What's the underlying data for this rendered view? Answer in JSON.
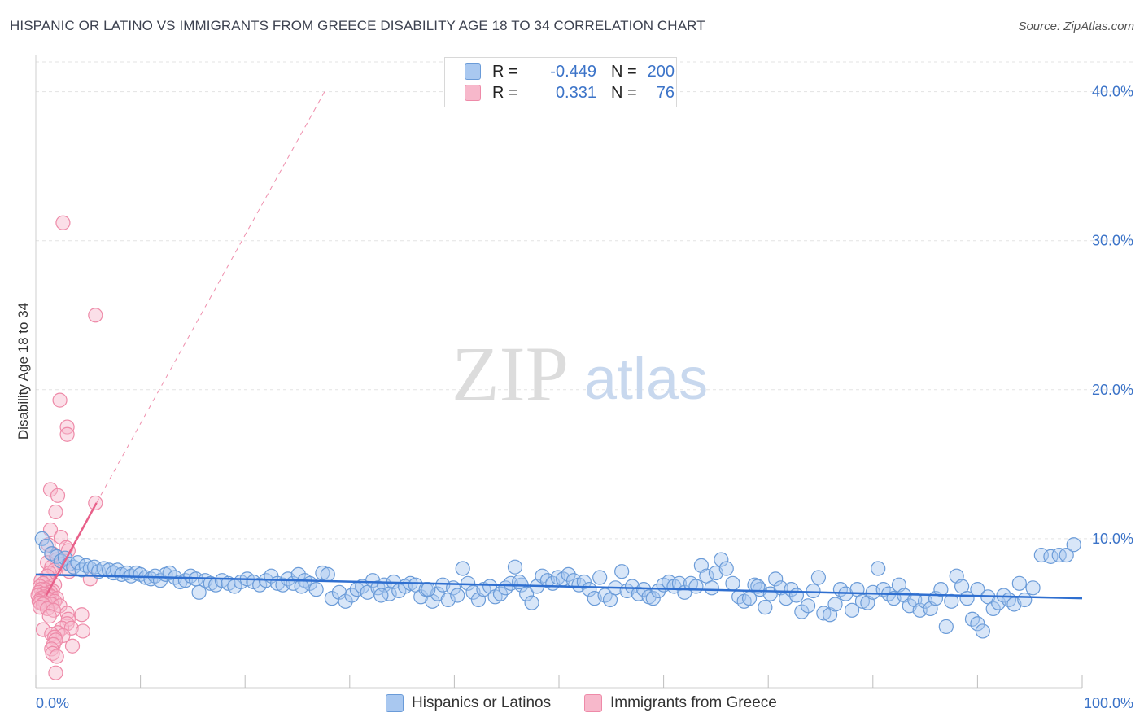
{
  "header": {
    "title": "HISPANIC OR LATINO VS IMMIGRANTS FROM GREECE DISABILITY AGE 18 TO 34 CORRELATION CHART",
    "source": "Source: ZipAtlas.com"
  },
  "watermark": {
    "zip": "ZIP",
    "atlas": "atlas"
  },
  "legend": {
    "series1": {
      "r_label": "R =",
      "r_value": "-0.449",
      "n_label": "N =",
      "n_value": "200"
    },
    "series2": {
      "r_label": "R =",
      "r_value": "0.331",
      "n_label": "N =",
      "n_value": "76"
    }
  },
  "bottom_legend": {
    "series1": "Hispanics or Latinos",
    "series2": "Immigrants from Greece"
  },
  "colors": {
    "blue_fill": "#a9c8f0",
    "blue_stroke": "#6a9bd8",
    "blue_line": "#2f6fd0",
    "pink_fill": "#f7b8cb",
    "pink_stroke": "#ee8aa8",
    "pink_line": "#e8608a",
    "tick_text": "#3b73c8",
    "grid": "#e3e3e3"
  },
  "chart_data": {
    "type": "scatter",
    "title": "HISPANIC OR LATINO VS IMMIGRANTS FROM GREECE DISABILITY AGE 18 TO 34 CORRELATION CHART",
    "xlabel": "",
    "ylabel": "Disability Age 18 to 34",
    "xlim": [
      0,
      100
    ],
    "ylim": [
      0,
      42
    ],
    "x_tick_labels": [
      "0.0%",
      "100.0%"
    ],
    "y_ticks": [
      10,
      20,
      30,
      40
    ],
    "y_tick_labels": [
      "10.0%",
      "20.0%",
      "30.0%",
      "40.0%"
    ],
    "grid": true,
    "series": [
      {
        "name": "Hispanics or Latinos",
        "r": -0.449,
        "n": 200,
        "trend": {
          "x0": 0,
          "y0": 7.6,
          "x1": 100,
          "y1": 6.0
        },
        "points": [
          [
            0.6,
            10.0
          ],
          [
            1,
            9.5
          ],
          [
            1.5,
            9.0
          ],
          [
            2,
            8.8
          ],
          [
            2.4,
            8.5
          ],
          [
            2.8,
            8.7
          ],
          [
            3.2,
            8.3
          ],
          [
            3.6,
            8.1
          ],
          [
            4,
            8.4
          ],
          [
            4.4,
            7.9
          ],
          [
            4.8,
            8.2
          ],
          [
            5.2,
            8.0
          ],
          [
            5.6,
            8.1
          ],
          [
            6,
            7.8
          ],
          [
            6.5,
            8.0
          ],
          [
            7,
            7.9
          ],
          [
            7.4,
            7.7
          ],
          [
            7.8,
            7.9
          ],
          [
            8.2,
            7.6
          ],
          [
            8.7,
            7.7
          ],
          [
            9.1,
            7.5
          ],
          [
            9.6,
            7.7
          ],
          [
            10,
            7.6
          ],
          [
            10.5,
            7.4
          ],
          [
            11,
            7.3
          ],
          [
            11.4,
            7.5
          ],
          [
            11.9,
            7.2
          ],
          [
            12.4,
            7.6
          ],
          [
            12.8,
            7.7
          ],
          [
            13.3,
            7.4
          ],
          [
            13.8,
            7.1
          ],
          [
            14.3,
            7.2
          ],
          [
            14.8,
            7.5
          ],
          [
            15.3,
            7.3
          ],
          [
            15.6,
            6.4
          ],
          [
            16.2,
            7.2
          ],
          [
            16.7,
            7.0
          ],
          [
            17.2,
            6.9
          ],
          [
            17.8,
            7.2
          ],
          [
            18.4,
            7.0
          ],
          [
            19,
            6.8
          ],
          [
            19.6,
            7.1
          ],
          [
            20.2,
            7.3
          ],
          [
            20.8,
            7.1
          ],
          [
            21.4,
            6.9
          ],
          [
            22,
            7.2
          ],
          [
            22.5,
            7.5
          ],
          [
            23.1,
            7.0
          ],
          [
            23.6,
            6.9
          ],
          [
            24.1,
            7.3
          ],
          [
            24.6,
            7.0
          ],
          [
            25.1,
            7.6
          ],
          [
            25.7,
            7.2
          ],
          [
            26.2,
            7.0
          ],
          [
            26.8,
            6.6
          ],
          [
            27.4,
            7.7
          ],
          [
            27.9,
            7.6
          ],
          [
            28.3,
            6.0
          ],
          [
            29,
            6.4
          ],
          [
            29.6,
            5.8
          ],
          [
            30.2,
            6.2
          ],
          [
            30.7,
            6.6
          ],
          [
            31.2,
            6.8
          ],
          [
            31.7,
            6.4
          ],
          [
            32.2,
            7.2
          ],
          [
            32.7,
            6.7
          ],
          [
            33.3,
            6.9
          ],
          [
            33.8,
            6.3
          ],
          [
            34.2,
            7.1
          ],
          [
            34.7,
            6.5
          ],
          [
            35.3,
            6.8
          ],
          [
            35.8,
            7.0
          ],
          [
            36.3,
            6.9
          ],
          [
            36.8,
            6.1
          ],
          [
            37.3,
            6.6
          ],
          [
            37.9,
            5.8
          ],
          [
            38.4,
            6.3
          ],
          [
            38.9,
            6.9
          ],
          [
            39.4,
            5.9
          ],
          [
            39.9,
            6.7
          ],
          [
            40.3,
            6.2
          ],
          [
            40.8,
            8.0
          ],
          [
            41.3,
            7.0
          ],
          [
            41.8,
            6.4
          ],
          [
            42.3,
            5.9
          ],
          [
            42.8,
            6.6
          ],
          [
            43.4,
            6.8
          ],
          [
            43.9,
            6.1
          ],
          [
            44.4,
            6.3
          ],
          [
            44.9,
            6.7
          ],
          [
            45.4,
            7.0
          ],
          [
            45.8,
            8.1
          ],
          [
            46.4,
            6.9
          ],
          [
            46.9,
            6.3
          ],
          [
            47.4,
            5.7
          ],
          [
            47.9,
            6.8
          ],
          [
            48.4,
            7.5
          ],
          [
            48.9,
            7.2
          ],
          [
            49.4,
            7.0
          ],
          [
            49.9,
            7.4
          ],
          [
            50.4,
            7.3
          ],
          [
            50.9,
            7.6
          ],
          [
            51.4,
            7.2
          ],
          [
            51.9,
            6.9
          ],
          [
            52.4,
            7.1
          ],
          [
            52.9,
            6.6
          ],
          [
            53.4,
            6.0
          ],
          [
            53.9,
            7.4
          ],
          [
            54.4,
            6.2
          ],
          [
            54.9,
            5.9
          ],
          [
            55.4,
            6.7
          ],
          [
            56,
            7.8
          ],
          [
            56.5,
            6.5
          ],
          [
            57,
            6.8
          ],
          [
            57.6,
            6.3
          ],
          [
            58.1,
            6.6
          ],
          [
            58.6,
            6.1
          ],
          [
            59,
            6.0
          ],
          [
            59.5,
            6.5
          ],
          [
            60,
            6.9
          ],
          [
            60.5,
            7.1
          ],
          [
            61,
            6.8
          ],
          [
            61.5,
            7.0
          ],
          [
            62,
            6.4
          ],
          [
            62.6,
            7.0
          ],
          [
            63.1,
            6.8
          ],
          [
            63.6,
            8.2
          ],
          [
            64.1,
            7.5
          ],
          [
            64.6,
            6.7
          ],
          [
            65,
            7.7
          ],
          [
            65.5,
            8.6
          ],
          [
            66,
            8.0
          ],
          [
            66.6,
            7.0
          ],
          [
            67.2,
            6.1
          ],
          [
            67.7,
            5.8
          ],
          [
            68.2,
            6.0
          ],
          [
            68.7,
            6.9
          ],
          [
            69.2,
            6.6
          ],
          [
            69.7,
            5.4
          ],
          [
            70.2,
            6.3
          ],
          [
            70.7,
            7.3
          ],
          [
            71.2,
            6.7
          ],
          [
            71.7,
            6.0
          ],
          [
            72.2,
            6.6
          ],
          [
            72.7,
            6.2
          ],
          [
            73.2,
            5.1
          ],
          [
            73.8,
            5.5
          ],
          [
            74.3,
            6.5
          ],
          [
            74.8,
            7.4
          ],
          [
            75.3,
            5.0
          ],
          [
            75.9,
            4.9
          ],
          [
            76.4,
            5.6
          ],
          [
            76.9,
            6.6
          ],
          [
            77.4,
            6.3
          ],
          [
            78,
            5.2
          ],
          [
            78.5,
            6.6
          ],
          [
            79,
            5.8
          ],
          [
            79.5,
            5.7
          ],
          [
            80,
            6.4
          ],
          [
            80.5,
            8.0
          ],
          [
            81,
            6.6
          ],
          [
            81.5,
            6.3
          ],
          [
            82,
            6.0
          ],
          [
            82.5,
            6.9
          ],
          [
            83,
            6.2
          ],
          [
            83.5,
            5.5
          ],
          [
            84,
            5.9
          ],
          [
            84.5,
            5.2
          ],
          [
            85,
            5.8
          ],
          [
            85.5,
            5.3
          ],
          [
            86,
            6.0
          ],
          [
            86.5,
            6.6
          ],
          [
            87,
            4.1
          ],
          [
            87.5,
            5.8
          ],
          [
            88,
            7.5
          ],
          [
            88.5,
            6.8
          ],
          [
            89,
            6.0
          ],
          [
            89.5,
            4.6
          ],
          [
            90,
            4.3
          ],
          [
            90.5,
            3.8
          ],
          [
            90,
            6.6
          ],
          [
            91,
            6.1
          ],
          [
            91.5,
            5.3
          ],
          [
            92,
            5.7
          ],
          [
            92.5,
            6.2
          ],
          [
            93,
            5.9
          ],
          [
            93.5,
            5.6
          ],
          [
            94,
            7.0
          ],
          [
            94.5,
            5.9
          ],
          [
            95.3,
            6.7
          ],
          [
            96.1,
            8.9
          ],
          [
            97,
            8.8
          ],
          [
            97.8,
            8.9
          ],
          [
            98.5,
            8.9
          ],
          [
            99.2,
            9.6
          ],
          [
            25.4,
            6.8
          ],
          [
            33.0,
            6.2
          ],
          [
            37.5,
            6.6
          ],
          [
            46.2,
            7.1
          ],
          [
            69.0,
            6.8
          ]
        ]
      },
      {
        "name": "Immigrants from Greece",
        "r": 0.331,
        "n": 76,
        "trend": {
          "x0": 1.0,
          "y0": 6.2,
          "x1": 5.8,
          "y1": 12.4
        },
        "trend_extended": {
          "x0": 5.8,
          "y0": 12.4,
          "x1": 27.6,
          "y1": 40.0
        },
        "points": [
          [
            2.6,
            31.2
          ],
          [
            5.7,
            25.0
          ],
          [
            2.3,
            19.3
          ],
          [
            3.0,
            17.5
          ],
          [
            3.0,
            17.0
          ],
          [
            1.4,
            13.3
          ],
          [
            2.1,
            12.9
          ],
          [
            5.7,
            12.4
          ],
          [
            1.9,
            11.8
          ],
          [
            1.4,
            10.6
          ],
          [
            2.4,
            10.1
          ],
          [
            1.2,
            9.6
          ],
          [
            2.9,
            9.4
          ],
          [
            3.1,
            9.2
          ],
          [
            1.6,
            9.0
          ],
          [
            2.0,
            8.6
          ],
          [
            1.1,
            8.4
          ],
          [
            2.6,
            8.3
          ],
          [
            1.5,
            8.1
          ],
          [
            1.8,
            7.9
          ],
          [
            3.2,
            7.8
          ],
          [
            1.3,
            7.7
          ],
          [
            1.1,
            7.5
          ],
          [
            5.2,
            7.3
          ],
          [
            0.5,
            7.2
          ],
          [
            1.0,
            7.1
          ],
          [
            0.7,
            7.0
          ],
          [
            1.8,
            6.9
          ],
          [
            0.4,
            6.8
          ],
          [
            1.2,
            6.7
          ],
          [
            0.9,
            6.6
          ],
          [
            0.5,
            6.6
          ],
          [
            1.6,
            6.5
          ],
          [
            1.4,
            6.4
          ],
          [
            0.3,
            6.4
          ],
          [
            1.0,
            6.3
          ],
          [
            0.7,
            6.3
          ],
          [
            1.3,
            6.2
          ],
          [
            0.2,
            6.2
          ],
          [
            0.8,
            6.1
          ],
          [
            1.5,
            6.1
          ],
          [
            0.5,
            6.0
          ],
          [
            1.1,
            6.0
          ],
          [
            2.0,
            6.0
          ],
          [
            0.6,
            5.9
          ],
          [
            1.3,
            5.9
          ],
          [
            0.3,
            5.8
          ],
          [
            1.8,
            5.8
          ],
          [
            0.9,
            5.7
          ],
          [
            0.4,
            5.7
          ],
          [
            1.5,
            5.6
          ],
          [
            0.7,
            5.6
          ],
          [
            2.3,
            5.5
          ],
          [
            0.4,
            5.4
          ],
          [
            1.1,
            5.3
          ],
          [
            1.7,
            5.2
          ],
          [
            3.0,
            5.0
          ],
          [
            4.4,
            4.9
          ],
          [
            1.3,
            4.8
          ],
          [
            3.1,
            4.6
          ],
          [
            3.0,
            4.3
          ],
          [
            2.5,
            4.0
          ],
          [
            3.4,
            4.0
          ],
          [
            0.7,
            3.9
          ],
          [
            4.5,
            3.8
          ],
          [
            2.1,
            3.7
          ],
          [
            1.5,
            3.6
          ],
          [
            2.6,
            3.5
          ],
          [
            1.8,
            3.4
          ],
          [
            1.9,
            3.2
          ],
          [
            1.7,
            2.9
          ],
          [
            1.5,
            2.6
          ],
          [
            3.5,
            2.8
          ],
          [
            1.6,
            2.3
          ],
          [
            2.0,
            2.1
          ],
          [
            1.9,
            1.0
          ]
        ]
      }
    ]
  }
}
